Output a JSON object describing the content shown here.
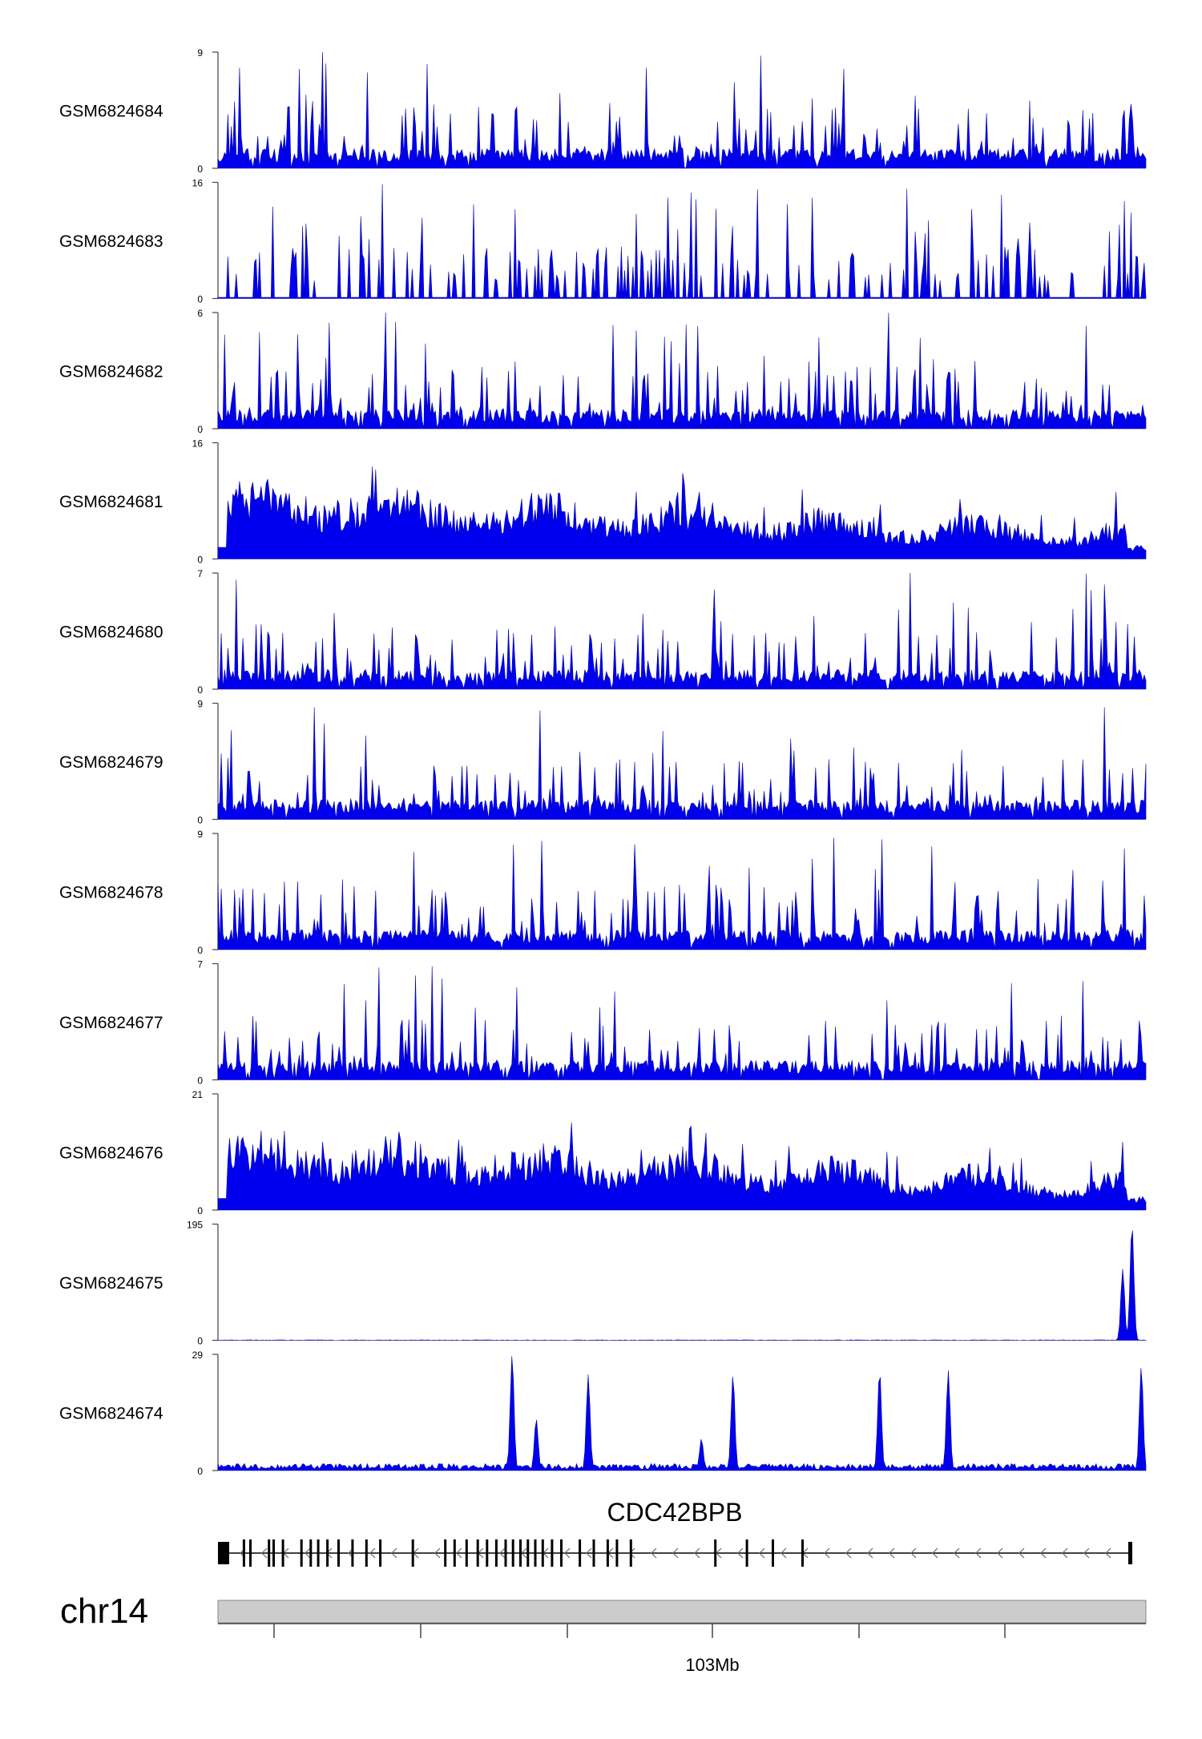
{
  "chart_data": {
    "type": "area",
    "chromosome": "chr14",
    "x_tick_label": "103Mb",
    "gene": {
      "name": "CDC42BPB",
      "strand": "-"
    },
    "track_color": "#0000ee",
    "ideogram_color": "#cccccc",
    "tracks": [
      {
        "name": "GSM6824684",
        "ymax": 9,
        "ymin": 0,
        "profile": "spiky",
        "peaks": []
      },
      {
        "name": "GSM6824683",
        "ymax": 16,
        "ymin": 0,
        "profile": "sparse",
        "peaks": []
      },
      {
        "name": "GSM6824682",
        "ymax": 6,
        "ymin": 0,
        "profile": "spiky",
        "peaks": []
      },
      {
        "name": "GSM6824681",
        "ymax": 16,
        "ymin": 0,
        "profile": "dense",
        "peaks": []
      },
      {
        "name": "GSM6824680",
        "ymax": 7,
        "ymin": 0,
        "profile": "spiky",
        "peaks": []
      },
      {
        "name": "GSM6824679",
        "ymax": 9,
        "ymin": 0,
        "profile": "spiky",
        "peaks": []
      },
      {
        "name": "GSM6824678",
        "ymax": 9,
        "ymin": 0,
        "profile": "spiky",
        "peaks": []
      },
      {
        "name": "GSM6824677",
        "ymax": 7,
        "ymin": 0,
        "profile": "spiky",
        "peaks": []
      },
      {
        "name": "GSM6824676",
        "ymax": 21,
        "ymin": 0,
        "profile": "dense",
        "peaks": []
      },
      {
        "name": "GSM6824675",
        "ymax": 195,
        "ymin": 0,
        "profile": "flat",
        "peaks": [
          {
            "pos": 0.985,
            "height": 195
          },
          {
            "pos": 0.975,
            "height": 120
          }
        ]
      },
      {
        "name": "GSM6824674",
        "ymax": 29,
        "ymin": 0,
        "profile": "low",
        "peaks": [
          {
            "pos": 0.317,
            "height": 29
          },
          {
            "pos": 0.343,
            "height": 13
          },
          {
            "pos": 0.399,
            "height": 24
          },
          {
            "pos": 0.521,
            "height": 8
          },
          {
            "pos": 0.555,
            "height": 24
          },
          {
            "pos": 0.713,
            "height": 25
          },
          {
            "pos": 0.787,
            "height": 25
          },
          {
            "pos": 0.995,
            "height": 26
          }
        ]
      }
    ]
  }
}
